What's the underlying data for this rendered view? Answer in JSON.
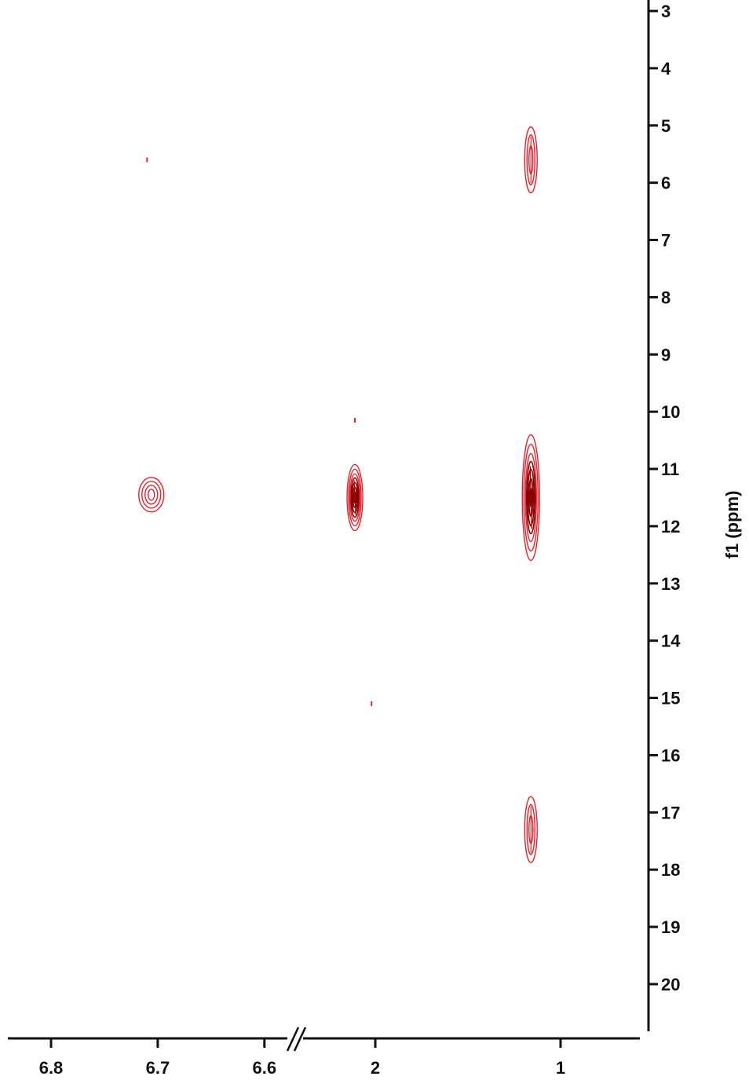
{
  "chart_data": {
    "type": "contour",
    "xaxis": {
      "segments": [
        {
          "range": [
            6.83,
            6.55
          ],
          "ticks": [
            6.8,
            6.7,
            6.6
          ]
        },
        {
          "range": [
            2.25,
            0.6
          ],
          "ticks": [
            2,
            1
          ]
        }
      ],
      "tick_labels": [
        "6.8",
        "6.7",
        "6.6",
        "2",
        "1"
      ],
      "label": "",
      "break_marker": "//"
    },
    "yaxis": {
      "label": "f1 (ppm)",
      "range": [
        3,
        20.8
      ],
      "ticks": [
        3,
        4,
        5,
        6,
        7,
        8,
        9,
        10,
        11,
        12,
        13,
        14,
        15,
        16,
        17,
        18,
        19,
        20
      ],
      "position": "right"
    },
    "peaks": [
      {
        "x": 6.706,
        "y": 11.45,
        "level": "medium"
      },
      {
        "x": 2.11,
        "y": 11.5,
        "level": "strong"
      },
      {
        "x": 1.16,
        "y": 11.5,
        "level": "strong"
      },
      {
        "x": 1.16,
        "y": 5.6,
        "level": "weak"
      },
      {
        "x": 1.16,
        "y": 17.3,
        "level": "weak"
      },
      {
        "x": 6.71,
        "y": 5.6,
        "level": "noise"
      },
      {
        "x": 2.11,
        "y": 10.15,
        "level": "noise"
      },
      {
        "x": 2.02,
        "y": 15.1,
        "level": "noise"
      }
    ],
    "colors": {
      "positive": "#e8202a",
      "strong_core": "#8b0000",
      "axis": "#111111"
    }
  }
}
